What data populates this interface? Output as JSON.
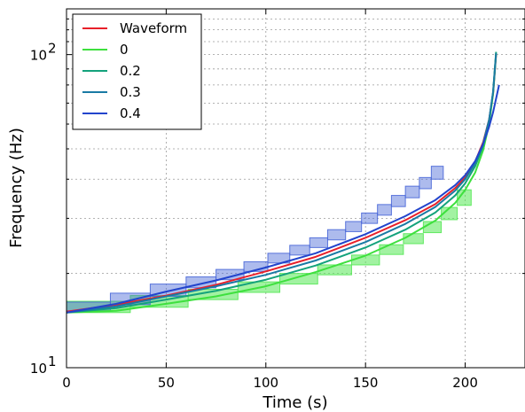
{
  "chart_data": {
    "type": "line",
    "xlabel": "Time (s)",
    "ylabel": "Frequency (Hz)",
    "xlim": [
      0,
      230
    ],
    "ylim": [
      10,
      140
    ],
    "y_scale": "log",
    "grid": true,
    "legend_position": "top-left",
    "x_ticks": [
      {
        "value": 0,
        "label": "0"
      },
      {
        "value": 50,
        "label": "50"
      },
      {
        "value": 100,
        "label": "100"
      },
      {
        "value": 150,
        "label": "150"
      },
      {
        "value": 200,
        "label": "200"
      }
    ],
    "y_ticks": [
      {
        "value": 10,
        "base": "10",
        "exp": "1"
      },
      {
        "value": 100,
        "base": "10",
        "exp": "2"
      }
    ],
    "series": [
      {
        "name": "Waveform",
        "color": "#e8202a",
        "x": [
          0,
          25,
          50,
          75,
          100,
          125,
          150,
          170,
          185,
          195,
          200,
          205,
          209,
          212,
          214,
          215.5
        ],
        "y": [
          15.1,
          15.9,
          17.0,
          18.4,
          20.3,
          22.6,
          26.0,
          29.6,
          33.3,
          37.5,
          40.5,
          45.5,
          52.5,
          62.0,
          75.0,
          100.0
        ]
      },
      {
        "name": "0",
        "color": "#3ee03e",
        "x": [
          0,
          25,
          50,
          75,
          100,
          125,
          150,
          170,
          185,
          195,
          200,
          205,
          209,
          212,
          214,
          215.5
        ],
        "y": [
          15.0,
          15.2,
          16.0,
          16.9,
          18.2,
          20.2,
          22.8,
          26.0,
          29.5,
          33.6,
          37.0,
          42.0,
          49.5,
          60.0,
          75.0,
          101.0
        ]
      },
      {
        "name": "0.2",
        "color": "#14a27c",
        "x": [
          0,
          25,
          50,
          75,
          100,
          125,
          150,
          170,
          185,
          195,
          200,
          205,
          209,
          212,
          214,
          215.5
        ],
        "y": [
          15.0,
          15.5,
          16.5,
          17.6,
          19.1,
          21.2,
          24.2,
          27.6,
          31.3,
          35.5,
          38.8,
          44.0,
          51.0,
          61.5,
          76.0,
          102.0
        ]
      },
      {
        "name": "0.3",
        "color": "#1a7aa4",
        "x": [
          0,
          25,
          50,
          75,
          100,
          125,
          150,
          170,
          185,
          195,
          200,
          205,
          209,
          212,
          214,
          215.5
        ],
        "y": [
          15.0,
          15.7,
          16.9,
          18.2,
          19.8,
          22.0,
          25.2,
          28.8,
          32.6,
          36.8,
          40.0,
          45.0,
          52.0,
          62.0,
          76.0,
          101.0
        ]
      },
      {
        "name": "0.4",
        "color": "#2244cc",
        "x": [
          0,
          25,
          50,
          75,
          100,
          125,
          150,
          170,
          185,
          195,
          200,
          205,
          209,
          212,
          214,
          217
        ],
        "y": [
          15.0,
          16.0,
          17.5,
          19.0,
          20.9,
          23.2,
          26.7,
          30.5,
          34.3,
          38.3,
          41.2,
          45.7,
          51.8,
          58.8,
          65.5,
          80.0
        ]
      }
    ],
    "step_bands": [
      {
        "for_series": "0",
        "fill": "#55e855",
        "opacity": 0.55,
        "steps": [
          {
            "x0": 0,
            "x1": 32,
            "y": 15.0,
            "y_top": 16.3
          },
          {
            "x0": 32,
            "x1": 61,
            "y": 15.6,
            "y_top": 17.0
          },
          {
            "x0": 61,
            "x1": 86,
            "y": 16.5,
            "y_top": 17.8
          },
          {
            "x0": 86,
            "x1": 107,
            "y": 17.4,
            "y_top": 18.8
          },
          {
            "x0": 107,
            "x1": 126,
            "y": 18.5,
            "y_top": 20.0
          },
          {
            "x0": 126,
            "x1": 143,
            "y": 19.8,
            "y_top": 21.3
          },
          {
            "x0": 143,
            "x1": 157,
            "y": 21.3,
            "y_top": 22.9
          },
          {
            "x0": 157,
            "x1": 169,
            "y": 23.0,
            "y_top": 24.7
          },
          {
            "x0": 169,
            "x1": 179,
            "y": 24.9,
            "y_top": 26.8
          },
          {
            "x0": 179,
            "x1": 188,
            "y": 27.0,
            "y_top": 29.3
          },
          {
            "x0": 188,
            "x1": 196,
            "y": 29.7,
            "y_top": 32.5
          },
          {
            "x0": 196,
            "x1": 203,
            "y": 33.0,
            "y_top": 37.0
          }
        ]
      },
      {
        "for_series": "0.4",
        "fill": "#4a68d8",
        "opacity": 0.45,
        "steps": [
          {
            "x0": 0,
            "x1": 22,
            "y": 15.2,
            "y_top": 16.2
          },
          {
            "x0": 22,
            "x1": 42,
            "y": 15.9,
            "y_top": 17.3
          },
          {
            "x0": 42,
            "x1": 60,
            "y": 16.9,
            "y_top": 18.5
          },
          {
            "x0": 60,
            "x1": 75,
            "y": 18.0,
            "y_top": 19.5
          },
          {
            "x0": 75,
            "x1": 89,
            "y": 19.1,
            "y_top": 20.6
          },
          {
            "x0": 89,
            "x1": 101,
            "y": 20.3,
            "y_top": 21.8
          },
          {
            "x0": 101,
            "x1": 112,
            "y": 21.6,
            "y_top": 23.2
          },
          {
            "x0": 112,
            "x1": 122,
            "y": 22.9,
            "y_top": 24.6
          },
          {
            "x0": 122,
            "x1": 131,
            "y": 24.2,
            "y_top": 26.0
          },
          {
            "x0": 131,
            "x1": 140,
            "y": 25.6,
            "y_top": 27.6
          },
          {
            "x0": 140,
            "x1": 148,
            "y": 27.2,
            "y_top": 29.3
          },
          {
            "x0": 148,
            "x1": 156,
            "y": 28.9,
            "y_top": 31.2
          },
          {
            "x0": 156,
            "x1": 163,
            "y": 30.7,
            "y_top": 33.2
          },
          {
            "x0": 163,
            "x1": 170,
            "y": 32.7,
            "y_top": 35.5
          },
          {
            "x0": 170,
            "x1": 177,
            "y": 34.9,
            "y_top": 38.0
          },
          {
            "x0": 177,
            "x1": 183,
            "y": 37.3,
            "y_top": 40.5
          },
          {
            "x0": 183,
            "x1": 189,
            "y": 40.0,
            "y_top": 44.0
          }
        ]
      }
    ]
  }
}
